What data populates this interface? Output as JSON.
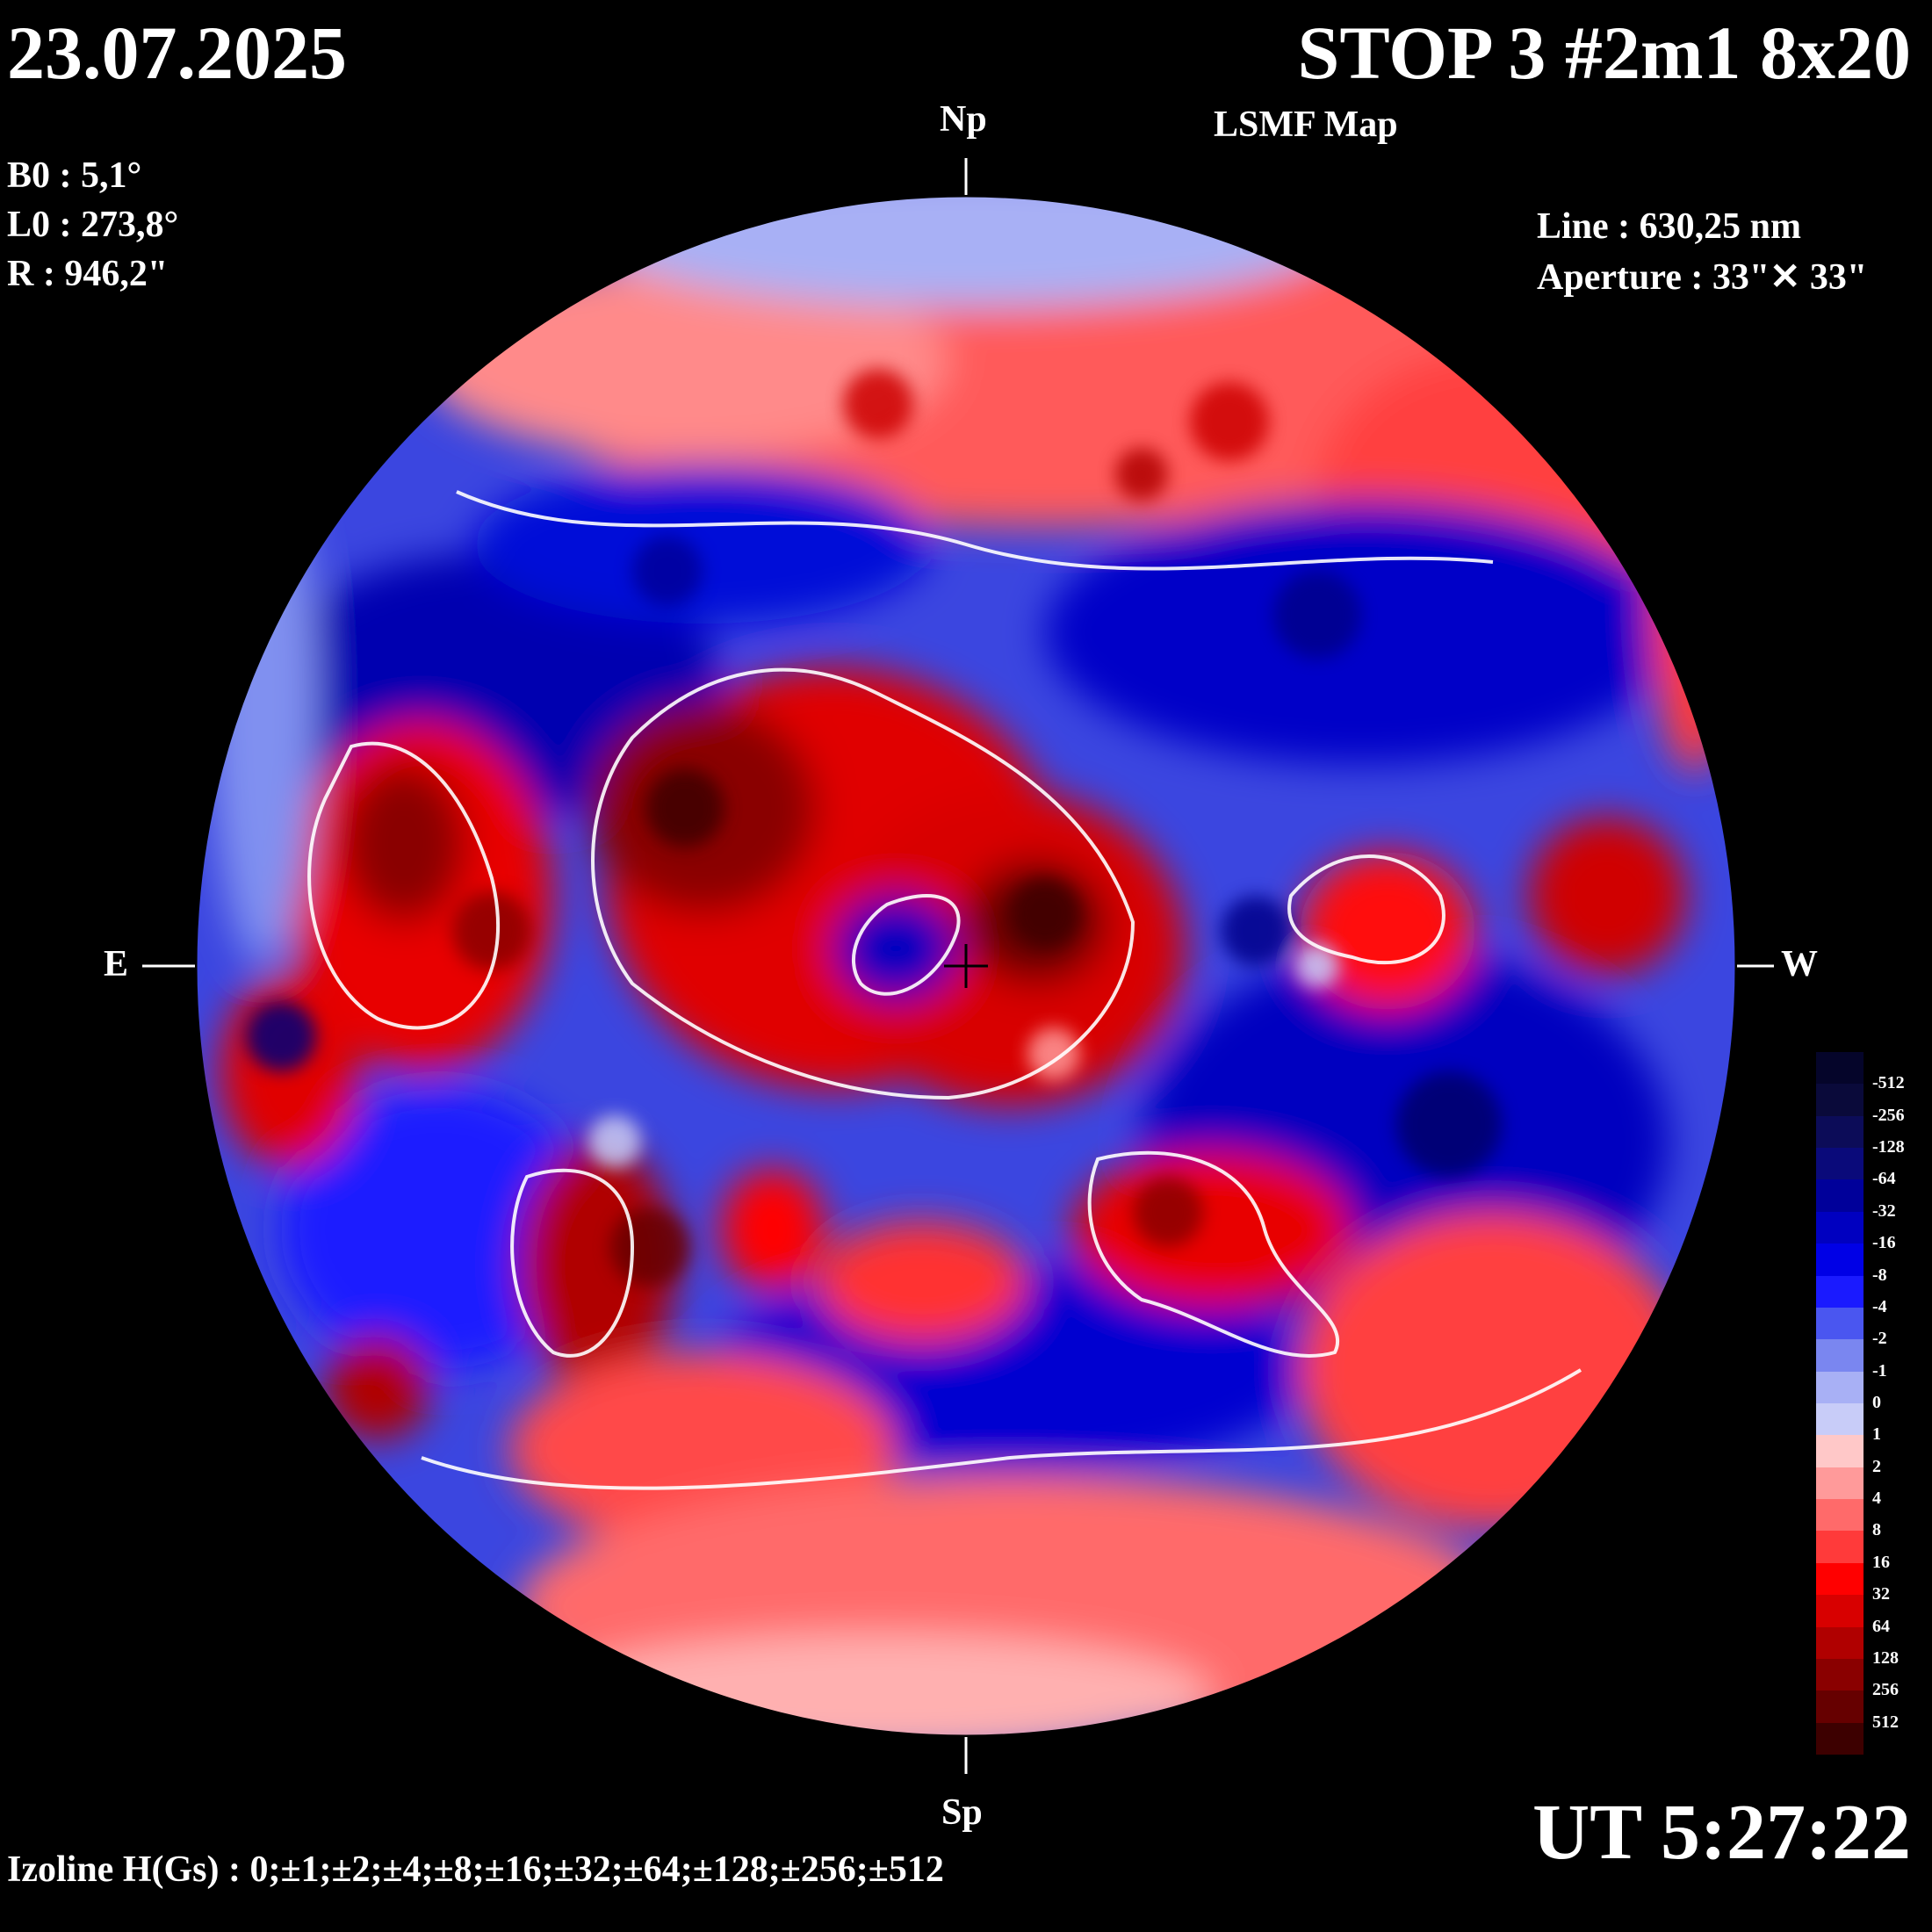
{
  "header": {
    "date": "23.07.2025",
    "title": "STOP 3 #2m1 8x20",
    "subtitle": "LSMF  Map"
  },
  "params": {
    "b0": "B0 : 5,1°",
    "l0": "L0 : 273,8°",
    "r": "R  : 946,2\""
  },
  "instrument": {
    "line": "Line :  630,25 nm",
    "aperture": "Aperture : 33\"✕ 33\""
  },
  "axes": {
    "north": "Np",
    "south": "Sp",
    "east": "E",
    "west": "W"
  },
  "time": "UT 5:27:22",
  "izoline": "Izoline H(Gs) : 0;±1;±2;±4;±8;±16;±32;±64;±128;±256;±512",
  "colorbar": {
    "levels": [
      "-512",
      "-256",
      "-128",
      "-64",
      "-32",
      "-16",
      "-8",
      "-4",
      "-2",
      "-1",
      "0",
      "1",
      "2",
      "4",
      "8",
      "16",
      "32",
      "64",
      "128",
      "256",
      "512"
    ],
    "colors": [
      "#0a0a3a",
      "#0c0c58",
      "#0a0a7a",
      "#00009a",
      "#0000c0",
      "#0000e6",
      "#1a1aff",
      "#4a56f0",
      "#7a86f0",
      "#a8b0f5",
      "#c8ccf8",
      "#ffc8c8",
      "#ff9a9a",
      "#ff6a6a",
      "#ff3a3a",
      "#ff0000",
      "#d80000",
      "#b00000",
      "#8a0000",
      "#660000",
      "#3d0000"
    ]
  }
}
